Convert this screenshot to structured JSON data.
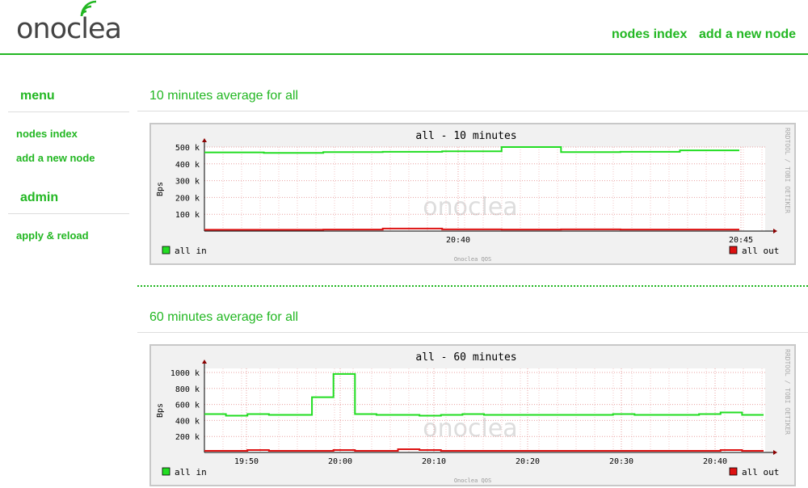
{
  "header": {
    "logo_text": "onoclea",
    "nav": [
      {
        "label": "nodes index"
      },
      {
        "label": "add a new node"
      }
    ]
  },
  "sidebar": {
    "menu_heading": "menu",
    "menu_items": [
      {
        "label": "nodes index"
      },
      {
        "label": "add a new node"
      }
    ],
    "admin_heading": "admin",
    "admin_items": [
      {
        "label": "apply & reload"
      }
    ]
  },
  "sections": [
    {
      "title": "10 minutes average for all"
    },
    {
      "title": "60 minutes average for all"
    }
  ],
  "colors": {
    "accent": "#22b722",
    "in": "#22dd22",
    "out": "#dd1111"
  },
  "chart_data": [
    {
      "type": "line",
      "title": "all - 10 minutes",
      "ylabel": "Bps",
      "side_label": "RRDTOOL / TOBI OETIKER",
      "watermark": "onoclea",
      "footer": "Onoclea QOS",
      "ylim": [
        0,
        500000
      ],
      "yticks": [
        "500 k",
        "400 k",
        "300 k",
        "200 k",
        "100 k"
      ],
      "xticks": [
        "20:40",
        "20:45"
      ],
      "legend": {
        "in": "all in",
        "out": "all out"
      },
      "series": [
        {
          "name": "all in",
          "values": [
            468000,
            465000,
            470000,
            472000,
            475000,
            500000,
            470000,
            472000,
            480000
          ]
        },
        {
          "name": "all out",
          "values": [
            8000,
            8000,
            9000,
            15000,
            10000,
            9000,
            10000,
            9000,
            9000
          ]
        }
      ]
    },
    {
      "type": "line",
      "title": "all - 60 minutes",
      "ylabel": "Bps",
      "side_label": "RRDTOOL / TOBI OETIKER",
      "watermark": "onoclea",
      "footer": "Onoclea QOS",
      "ylim": [
        0,
        1050000
      ],
      "yticks": [
        "1000 k",
        "800 k",
        "600 k",
        "400 k",
        "200 k"
      ],
      "xticks": [
        "19:50",
        "20:00",
        "20:10",
        "20:20",
        "20:30",
        "20:40"
      ],
      "legend": {
        "in": "all in",
        "out": "all out"
      },
      "series": [
        {
          "name": "all in",
          "values": [
            480000,
            460000,
            480000,
            470000,
            470000,
            690000,
            980000,
            480000,
            470000,
            470000,
            460000,
            470000,
            480000,
            470000,
            470000,
            470000,
            470000,
            470000,
            470000,
            480000,
            470000,
            470000,
            470000,
            480000,
            500000,
            470000
          ]
        },
        {
          "name": "all out",
          "values": [
            20000,
            20000,
            30000,
            20000,
            20000,
            20000,
            30000,
            20000,
            20000,
            40000,
            30000,
            20000,
            20000,
            20000,
            20000,
            20000,
            20000,
            20000,
            20000,
            20000,
            20000,
            20000,
            20000,
            20000,
            30000,
            20000
          ]
        }
      ]
    }
  ]
}
